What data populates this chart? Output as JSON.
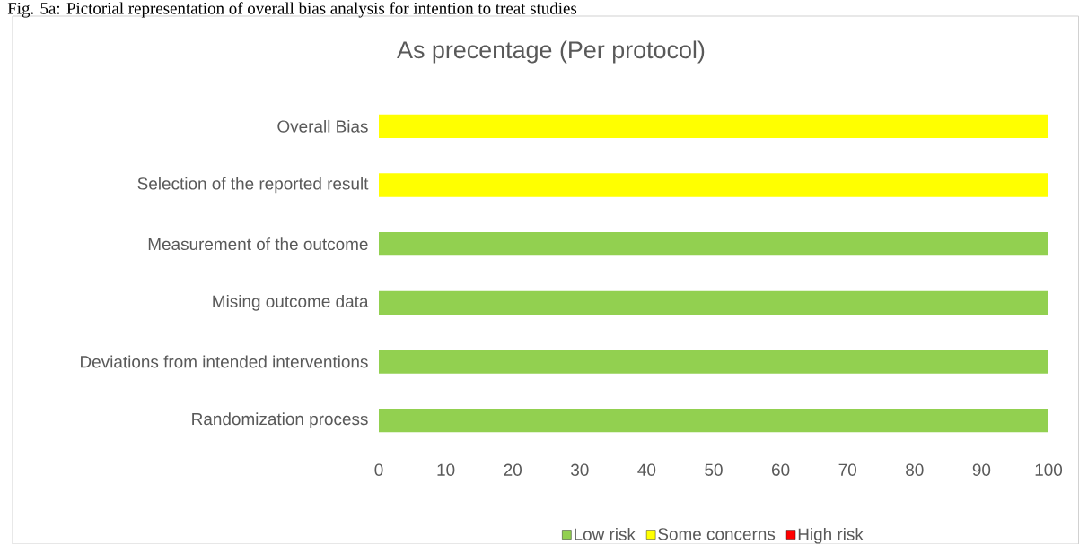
{
  "chart_data": {
    "type": "bar",
    "orientation": "horizontal",
    "stacked": true,
    "title": "As precentage (Per protocol)",
    "annotations": [
      "Fig. 5a: Pictorial representation of overall bias analysis for intention to treat studies"
    ],
    "categories": [
      "Overall Bias",
      "Selection of the reported result",
      "Measurement of the outcome",
      "Mising outcome data",
      "Deviations from intended interventions",
      "Randomization process"
    ],
    "series": [
      {
        "name": "Low risk",
        "color": "#92d050",
        "values": [
          null,
          null,
          100,
          100,
          100,
          100
        ]
      },
      {
        "name": "Some concerns",
        "color": "#ffff00",
        "values": [
          100,
          100,
          null,
          null,
          null,
          null
        ]
      },
      {
        "name": "High risk",
        "color": "#ff0000",
        "values": [
          null,
          null,
          null,
          null,
          null,
          null
        ]
      }
    ],
    "xlim": [
      0,
      100
    ],
    "xticks": [
      0,
      10,
      20,
      30,
      40,
      50,
      60,
      70,
      80,
      90,
      100
    ],
    "grid": false,
    "legend": "bottom"
  }
}
